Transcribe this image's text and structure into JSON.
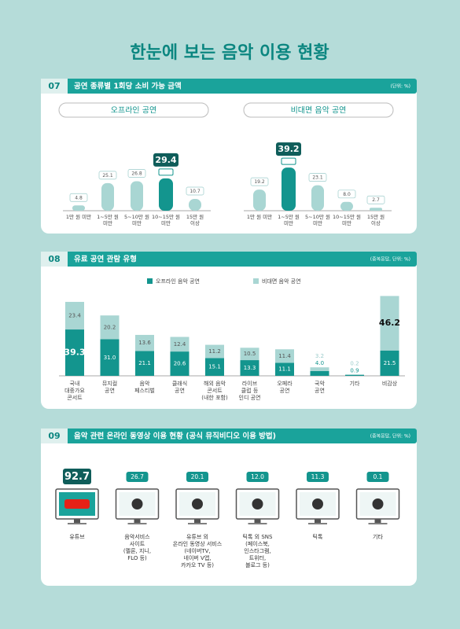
{
  "title": "한눈에 보는 음악 이용 현황",
  "sections": [
    {
      "number": "07",
      "title": "공연 종류별 1회당 소비 가능 금액",
      "unit": "(단위: %)"
    },
    {
      "number": "08",
      "title": "유료 공연 관람 유형",
      "unit": "(중복응답, 단위: %)"
    },
    {
      "number": "09",
      "title": "음악 관련 온라인 동영상 이용 현황 (공식 뮤직비디오 이용 방법)",
      "unit": "(중복응답, 단위: %)"
    }
  ],
  "chart_data": [
    {
      "type": "bar",
      "subtitle": "오프라인 공연",
      "categories": [
        "1만 원 미만",
        "1~5만 원\n미만",
        "5~10만 원\n미만",
        "10~15만 원\n미만",
        "15만 원\n이상"
      ],
      "values": [
        4.8,
        25.1,
        26.8,
        29.4,
        10.7
      ],
      "color": "#a9d6d3",
      "highlight_color": "#13958e"
    },
    {
      "type": "bar",
      "subtitle": "비대면 음악 공연",
      "categories": [
        "1만 원 미만",
        "1~5만 원\n미만",
        "5~10만 원\n미만",
        "10~15만 원\n미만",
        "15만 원\n이상"
      ],
      "values": [
        19.2,
        39.2,
        23.1,
        8.0,
        2.7
      ],
      "value_labels": [
        "19.2",
        "39.2",
        "23.1",
        "8.0",
        "2.7"
      ],
      "color": "#a9d6d3",
      "highlight_color": "#13958e"
    },
    {
      "type": "stacked_bar",
      "categories": [
        "국내\n대중가요\n콘서트",
        "뮤지컬\n공연",
        "음악\n페스티벌",
        "클래식\n공연",
        "해외 음악\n콘서트\n(내한 포함)",
        "라이브\n클럽 등\n인디 공연",
        "오페라\n공연",
        "국악\n공연",
        "기타",
        "비감상"
      ],
      "series": [
        {
          "name": "오프라인 음악 공연",
          "color": "#13958e",
          "values": [
            39.3,
            31.0,
            21.1,
            20.6,
            15.1,
            13.3,
            11.1,
            4.0,
            0.9,
            21.5
          ],
          "value_labels": [
            "39.3",
            "31.0",
            "21.1",
            "20.6",
            "15.1",
            "13.3",
            "11.1",
            "4.0",
            "0.9",
            "21.5"
          ]
        },
        {
          "name": "비대면 음악 공연",
          "color": "#a9d6d3",
          "values": [
            23.4,
            20.2,
            13.6,
            12.4,
            11.2,
            10.5,
            11.4,
            3.2,
            0.2,
            46.2
          ]
        }
      ]
    },
    {
      "type": "icon_value",
      "categories": [
        "유튜브",
        "음악서비스\n사이트\n(멜론, 지니,\nFLO 등)",
        "유튜브 외\n온라인 동영상 서비스\n(네이버TV,\n네이버 V앱,\n카카오 TV 등)",
        "틱톡 외 SNS\n(페이스북,\n인스타그램,\n트위터,\n블로그 등)",
        "틱톡",
        "기타"
      ],
      "values": [
        92.7,
        26.7,
        20.1,
        12.0,
        11.3,
        0.1
      ],
      "value_labels": [
        "92.7",
        "26.7",
        "20.1",
        "12.0",
        "11.3",
        "0.1"
      ],
      "color": "#13958e",
      "highlight_color": "#0f5d5a"
    }
  ]
}
